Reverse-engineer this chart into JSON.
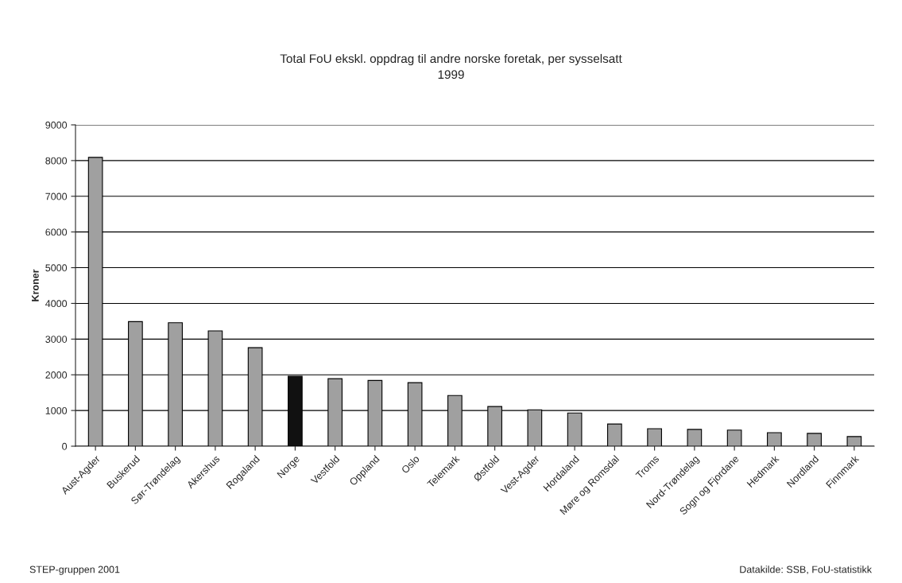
{
  "chart_data": {
    "type": "bar",
    "title": "Total FoU ekskl. oppdrag til andre norske foretak, per sysselsatt",
    "subtitle": "1999",
    "ylabel": "Kroner",
    "categories": [
      "Aust-Agder",
      "Buskerud",
      "Sør-Trøndelag",
      "Akershus",
      "Rogaland",
      "Norge",
      "Vestfold",
      "Oppland",
      "Oslo",
      "Telemark",
      "Østfold",
      "Vest-Agder",
      "Hordaland",
      "Møre og Romsdal",
      "Troms",
      "Nord-Trøndelag",
      "Sogn og Fjordane",
      "Hedmark",
      "Nordland",
      "Finnmark"
    ],
    "values": [
      8090,
      3490,
      3460,
      3230,
      2760,
      1960,
      1890,
      1840,
      1780,
      1420,
      1110,
      1020,
      930,
      620,
      490,
      470,
      450,
      380,
      360,
      270
    ],
    "colors": [
      "#a0a0a0",
      "#a0a0a0",
      "#a0a0a0",
      "#a0a0a0",
      "#a0a0a0",
      "#111111",
      "#a0a0a0",
      "#a0a0a0",
      "#a0a0a0",
      "#a0a0a0",
      "#a0a0a0",
      "#a0a0a0",
      "#a0a0a0",
      "#a0a0a0",
      "#a0a0a0",
      "#a0a0a0",
      "#a0a0a0",
      "#a0a0a0",
      "#a0a0a0",
      "#a0a0a0"
    ],
    "ylim": [
      0,
      9000
    ],
    "yticks": [
      0,
      1000,
      2000,
      3000,
      4000,
      5000,
      6000,
      7000,
      8000,
      9000
    ],
    "grid": "y",
    "legend": false,
    "annotations": [
      "STEP-gruppen 2001",
      "Datakilde: SSB, FoU-statistikk"
    ]
  }
}
